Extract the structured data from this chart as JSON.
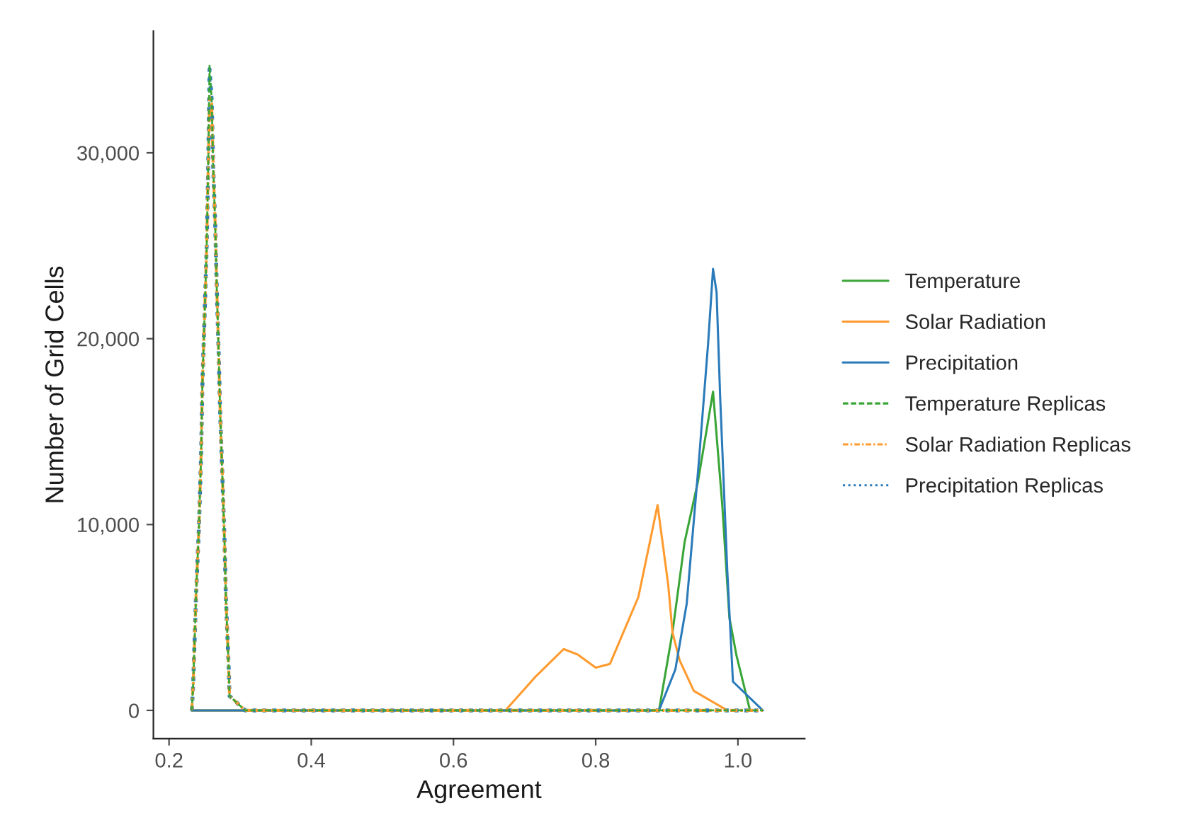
{
  "chart_data": {
    "type": "line",
    "xlabel": "Agreement",
    "ylabel": "Number of Grid Cells",
    "xlim": [
      0.178,
      1.094
    ],
    "ylim": [
      -1520,
      36550
    ],
    "xticks": [
      {
        "value": 0.2,
        "label": "0.2"
      },
      {
        "value": 0.4,
        "label": "0.4"
      },
      {
        "value": 0.6,
        "label": "0.6"
      },
      {
        "value": 0.8,
        "label": "0.8"
      },
      {
        "value": 1.0,
        "label": "1.0"
      }
    ],
    "yticks": [
      {
        "value": 0,
        "label": "0"
      },
      {
        "value": 10000,
        "label": "10,000"
      },
      {
        "value": 20000,
        "label": "20,000"
      },
      {
        "value": 30000,
        "label": "30,000"
      }
    ],
    "grid": false,
    "legend": "right",
    "marker": "none",
    "series": [
      {
        "name": "Temperature",
        "color": "#3aa537",
        "line_style": "solid",
        "x": [
          0.232,
          0.889,
          0.908,
          0.925,
          0.944,
          0.965,
          0.978,
          0.988,
          0.998,
          1.017
        ],
        "values": [
          0,
          0,
          4200,
          9050,
          12350,
          17150,
          11050,
          5000,
          2950,
          0
        ]
      },
      {
        "name": "Solar Radiation",
        "color": "#ff9a2e",
        "line_style": "solid",
        "x": [
          0.232,
          0.673,
          0.715,
          0.755,
          0.775,
          0.8,
          0.82,
          0.86,
          0.887,
          0.902,
          0.908,
          0.918,
          0.938,
          0.985
        ],
        "values": [
          0,
          0,
          1800,
          3300,
          3000,
          2300,
          2500,
          6100,
          11050,
          6750,
          4200,
          2700,
          1050,
          0
        ]
      },
      {
        "name": "Precipitation",
        "color": "#2b7bba",
        "line_style": "solid",
        "x": [
          0.232,
          0.889,
          0.912,
          0.928,
          0.945,
          0.958,
          0.965,
          0.97,
          0.975,
          0.985,
          0.993,
          1.035
        ],
        "values": [
          0,
          0,
          2200,
          5750,
          13350,
          19700,
          23750,
          22500,
          16900,
          7550,
          1550,
          0
        ]
      },
      {
        "name": "Temperature Replicas",
        "color": "#3aa537",
        "line_style": "dashed",
        "x": [
          0.232,
          0.234,
          0.238,
          0.242,
          0.245,
          0.247,
          0.25,
          0.253,
          0.255,
          0.257,
          0.26,
          0.262,
          0.265,
          0.267,
          0.27,
          0.272,
          0.275,
          0.278,
          0.28,
          0.284,
          0.285,
          0.307,
          1.035
        ],
        "values": [
          0,
          1450,
          6250,
          9800,
          13600,
          17700,
          21250,
          25050,
          29100,
          34680,
          32800,
          29350,
          26050,
          22900,
          18950,
          15900,
          12600,
          9150,
          6000,
          2200,
          780,
          0,
          0
        ]
      },
      {
        "name": "Solar Radiation Replicas",
        "color": "#ff9a2e",
        "line_style": "dashdot",
        "x": [
          0.232,
          0.234,
          0.238,
          0.242,
          0.245,
          0.247,
          0.25,
          0.253,
          0.255,
          0.257,
          0.26,
          0.262,
          0.265,
          0.267,
          0.27,
          0.272,
          0.275,
          0.278,
          0.28,
          0.284,
          0.285,
          0.307,
          1.035
        ],
        "values": [
          0,
          1450,
          6250,
          9800,
          13600,
          17700,
          21250,
          25050,
          29100,
          33000,
          32650,
          29350,
          26050,
          22900,
          18950,
          15900,
          12600,
          9150,
          6000,
          2200,
          780,
          0,
          0
        ]
      },
      {
        "name": "Precipitation Replicas",
        "color": "#2b7bba",
        "line_style": "dotted",
        "x": [
          0.232,
          0.234,
          0.238,
          0.242,
          0.245,
          0.247,
          0.25,
          0.253,
          0.255,
          0.257,
          0.26,
          0.262,
          0.265,
          0.267,
          0.27,
          0.272,
          0.275,
          0.278,
          0.28,
          0.284,
          0.285,
          0.307,
          1.035
        ],
        "values": [
          0,
          1450,
          6250,
          9800,
          13600,
          17700,
          21250,
          25050,
          29100,
          34500,
          32800,
          29350,
          26050,
          22900,
          18950,
          15900,
          12600,
          9150,
          6000,
          2200,
          780,
          0,
          0
        ]
      }
    ]
  }
}
